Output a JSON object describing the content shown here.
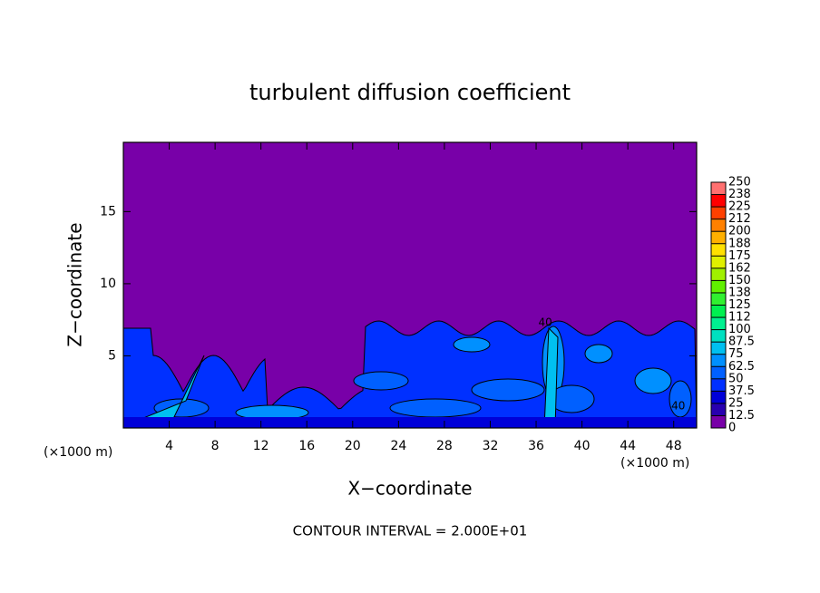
{
  "chart_data": {
    "type": "contour",
    "title": "turbulent diffusion coefficient",
    "xlabel": "X−coordinate",
    "ylabel": "Z−coordinate",
    "xunit_left": "(×1000 m)",
    "xunit_right": "(×1000 m)",
    "footnote": "CONTOUR INTERVAL = 2.000E+01",
    "contour_labels": [
      {
        "text": "40",
        "x": 36.8,
        "y": 7.3
      },
      {
        "text": "40",
        "x": 48.4,
        "y": 1.5
      }
    ],
    "xlim": [
      0,
      50
    ],
    "ylim": [
      0,
      19.8
    ],
    "xticks": [
      4,
      8,
      12,
      16,
      20,
      24,
      28,
      32,
      36,
      40,
      44,
      48
    ],
    "yticks": [
      5,
      10,
      15
    ],
    "background_color": "#7800a8",
    "colorbar": {
      "levels": [
        0,
        12.5,
        25,
        37.5,
        50,
        62.5,
        75,
        87.5,
        100,
        112,
        125,
        138,
        150,
        162,
        175,
        188,
        200,
        212,
        225,
        238,
        250
      ],
      "colors": [
        "#7800a8",
        "#2800b0",
        "#0000d8",
        "#0030ff",
        "#0060ff",
        "#0090ff",
        "#00c0f0",
        "#00e0c0",
        "#00f090",
        "#00f050",
        "#30f030",
        "#60f000",
        "#a0f000",
        "#e0f000",
        "#ffe000",
        "#ffb000",
        "#ff8000",
        "#ff4000",
        "#ff0000",
        "#ff7070"
      ]
    }
  }
}
